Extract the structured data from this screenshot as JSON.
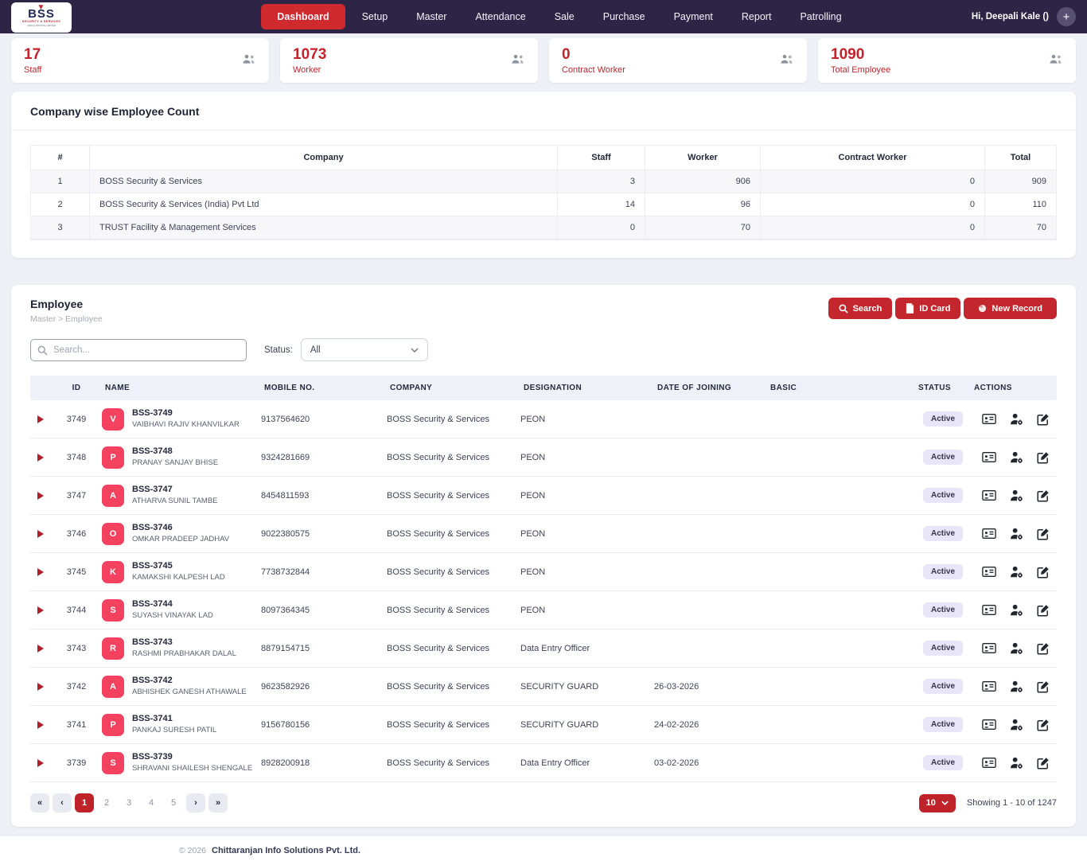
{
  "brand": {
    "logo_word": "BSS",
    "logo_bird": "▼",
    "logo_sub1": "SECURITY & SERVICES",
    "logo_sub2": "(INDIA) PRIVATE LIMITED"
  },
  "nav": {
    "items": [
      {
        "label": "Dashboard",
        "active": true
      },
      {
        "label": "Setup",
        "active": false
      },
      {
        "label": "Master",
        "active": false
      },
      {
        "label": "Attendance",
        "active": false
      },
      {
        "label": "Sale",
        "active": false
      },
      {
        "label": "Purchase",
        "active": false
      },
      {
        "label": "Payment",
        "active": false
      },
      {
        "label": "Report",
        "active": false
      },
      {
        "label": "Patrolling",
        "active": false
      }
    ],
    "user_greeting": "Hi, Deepali Kale ()",
    "plus_label": "+"
  },
  "stats": [
    {
      "value": "17",
      "label": "Staff",
      "icon": "people-icon"
    },
    {
      "value": "1073",
      "label": "Worker",
      "icon": "people-icon"
    },
    {
      "value": "0",
      "label": "Contract Worker",
      "icon": "people-icon"
    },
    {
      "value": "1090",
      "label": "Total Employee",
      "icon": "people-icon"
    }
  ],
  "company_table": {
    "title": "Company wise Employee Count",
    "headers": [
      "#",
      "Company",
      "Staff",
      "Worker",
      "Contract Worker",
      "Total"
    ],
    "rows": [
      {
        "num": "1",
        "company": "BOSS Security & Services",
        "staff": "3",
        "worker": "906",
        "contract_worker": "0",
        "total": "909"
      },
      {
        "num": "2",
        "company": "BOSS Security & Services (India) Pvt Ltd",
        "staff": "14",
        "worker": "96",
        "contract_worker": "0",
        "total": "110"
      },
      {
        "num": "3",
        "company": "TRUST Facility & Management Services",
        "staff": "0",
        "worker": "70",
        "contract_worker": "0",
        "total": "70"
      }
    ]
  },
  "employee": {
    "title": "Employee",
    "breadcrumb": "Master > Employee",
    "buttons": {
      "search": "Search",
      "id_card": "ID Card",
      "new_record": "New Record"
    },
    "filters": {
      "search_placeholder": "Search...",
      "status_label": "Status:",
      "status_value": "All"
    },
    "table_headers": [
      "ID",
      "NAME",
      "MOBILE NO.",
      "COMPANY",
      "DESIGNATION",
      "DATE OF JOINING",
      "BASIC",
      "STATUS",
      "ACTIONS"
    ],
    "action_icons": [
      "id-card-icon",
      "user-settings-icon",
      "edit-icon",
      "more-icon"
    ],
    "rows": [
      {
        "id": "3749",
        "initial": "V",
        "code": "BSS-3749",
        "name": "VAIBHAVI RAJIV KHANVILKAR",
        "mobile": "9137564620",
        "company": "BOSS Security & Services",
        "designation": "PEON",
        "doj": "",
        "basic": "",
        "status": "Active"
      },
      {
        "id": "3748",
        "initial": "P",
        "code": "BSS-3748",
        "name": "PRANAY SANJAY BHISE",
        "mobile": "9324281669",
        "company": "BOSS Security & Services",
        "designation": "PEON",
        "doj": "",
        "basic": "",
        "status": "Active"
      },
      {
        "id": "3747",
        "initial": "A",
        "code": "BSS-3747",
        "name": "ATHARVA SUNIL TAMBE",
        "mobile": "8454811593",
        "company": "BOSS Security & Services",
        "designation": "PEON",
        "doj": "",
        "basic": "",
        "status": "Active"
      },
      {
        "id": "3746",
        "initial": "O",
        "code": "BSS-3746",
        "name": "OMKAR PRADEEP JADHAV",
        "mobile": "9022380575",
        "company": "BOSS Security & Services",
        "designation": "PEON",
        "doj": "",
        "basic": "",
        "status": "Active"
      },
      {
        "id": "3745",
        "initial": "K",
        "code": "BSS-3745",
        "name": "KAMAKSHI KALPESH LAD",
        "mobile": "7738732844",
        "company": "BOSS Security & Services",
        "designation": "PEON",
        "doj": "",
        "basic": "",
        "status": "Active"
      },
      {
        "id": "3744",
        "initial": "S",
        "code": "BSS-3744",
        "name": "SUYASH VINAYAK LAD",
        "mobile": "8097364345",
        "company": "BOSS Security & Services",
        "designation": "PEON",
        "doj": "",
        "basic": "",
        "status": "Active"
      },
      {
        "id": "3743",
        "initial": "R",
        "code": "BSS-3743",
        "name": "RASHMI PRABHAKAR DALAL",
        "mobile": "8879154715",
        "company": "BOSS Security & Services",
        "designation": "Data Entry Officer",
        "doj": "",
        "basic": "",
        "status": "Active"
      },
      {
        "id": "3742",
        "initial": "A",
        "code": "BSS-3742",
        "name": "ABHISHEK GANESH ATHAWALE",
        "mobile": "9623582926",
        "company": "BOSS Security & Services",
        "designation": "SECURITY GUARD",
        "doj": "26-03-2026",
        "basic": "",
        "status": "Active"
      },
      {
        "id": "3741",
        "initial": "P",
        "code": "BSS-3741",
        "name": "PANKAJ SURESH PATIL",
        "mobile": "9156780156",
        "company": "BOSS Security & Services",
        "designation": "SECURITY GUARD",
        "doj": "24-02-2026",
        "basic": "",
        "status": "Active"
      },
      {
        "id": "3739",
        "initial": "S",
        "code": "BSS-3739",
        "name": "SHRAVANI SHAILESH SHENGALE",
        "mobile": "8928200918",
        "company": "BOSS Security & Services",
        "designation": "Data Entry Officer",
        "doj": "03-02-2026",
        "basic": "",
        "status": "Active"
      }
    ]
  },
  "pagination": {
    "first": "«",
    "prev": "‹",
    "next": "›",
    "last": "»",
    "pages": [
      "1",
      "2",
      "3",
      "4",
      "5"
    ],
    "active_page": "1",
    "page_size": "10",
    "showing": "Showing 1 - 10 of 1247"
  },
  "footer": {
    "copyright": "© 2026",
    "company": "Chittaranjan Info Solutions Pvt. Ltd."
  },
  "colors": {
    "nav_bg": "#2e2546",
    "primary_red": "#c3272d",
    "stat_red": "#c4232b",
    "avatar_rose": "#f4415f",
    "badge_bg": "#e9e5f9",
    "page_bg": "#edf0f5"
  }
}
